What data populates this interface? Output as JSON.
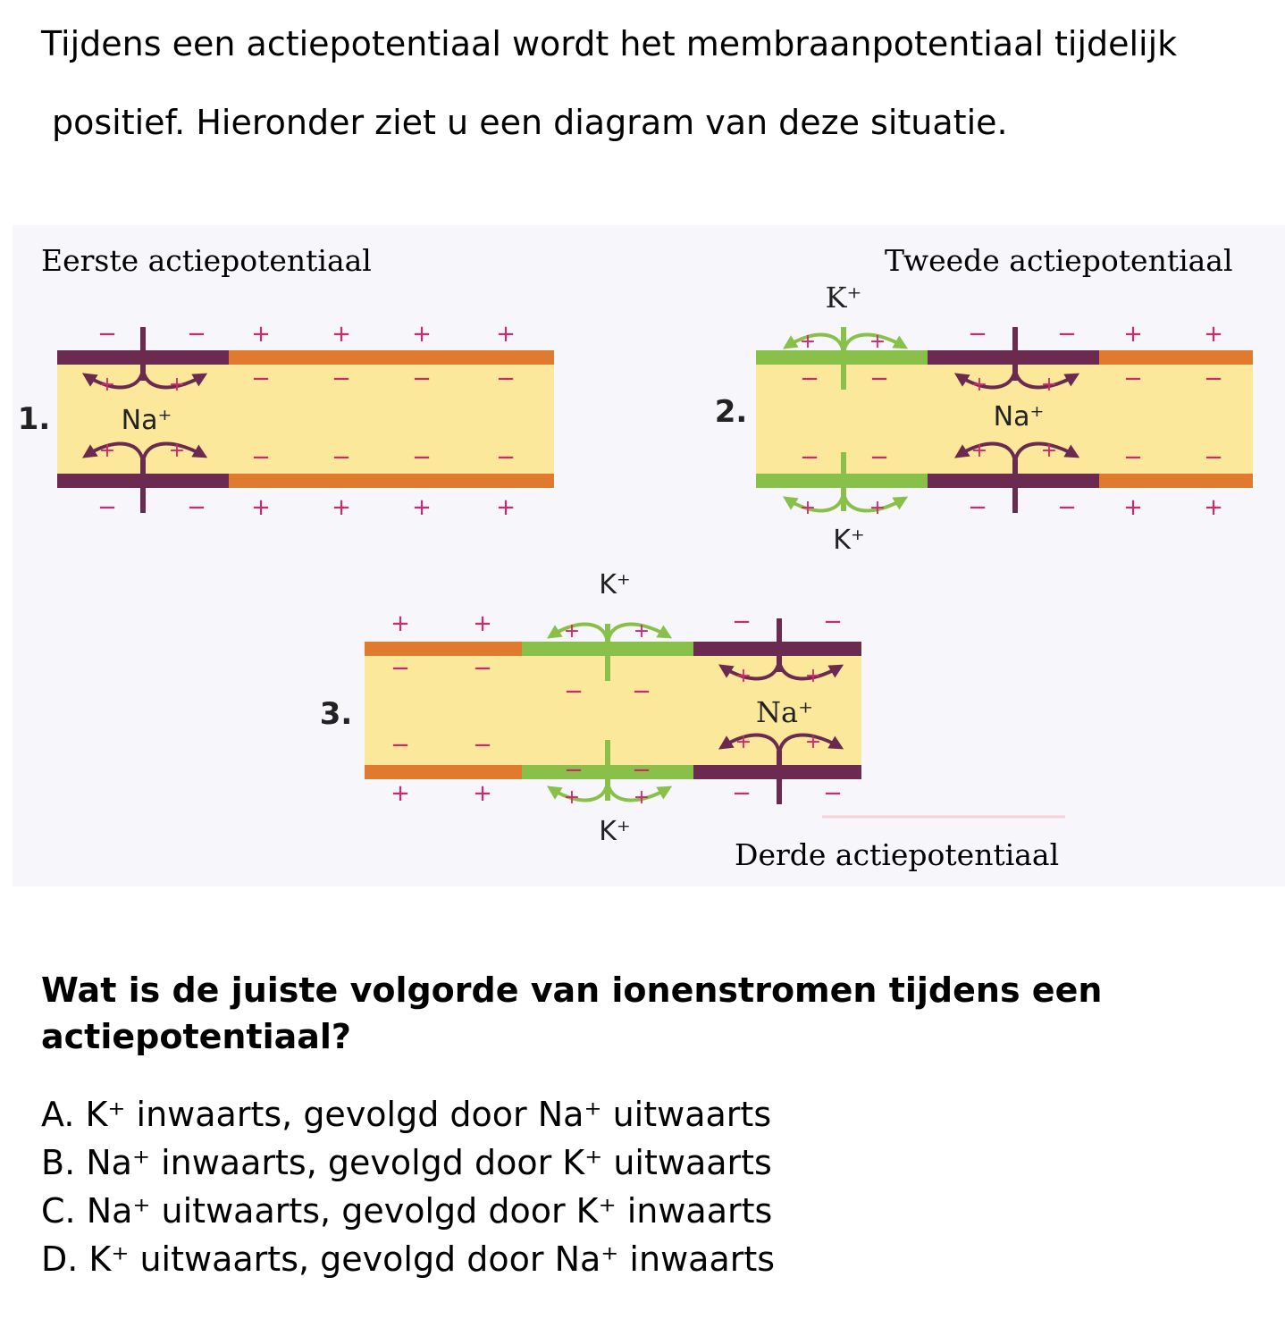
{
  "intro": {
    "line1": "Tijdens een actiepotentiaal wordt het membraanpotentiaal tijdelijk",
    "line2": "positief. Hieronder ziet u een diagram van deze situatie."
  },
  "diagram": {
    "labels": {
      "first": "Eerste actiepotentiaal",
      "second": "Tweede actiepotentiaal",
      "third": "Derde actiepotentiaal"
    },
    "panel_numbers": [
      "1.",
      "2.",
      "3."
    ],
    "ions": {
      "sodium": "Na⁺",
      "potassium": "K⁺"
    },
    "charge_signs": {
      "plus": "+",
      "minus": "−"
    },
    "colors": {
      "cytoplasm": "#fbe89a",
      "resting_membrane": "#e07a2e",
      "depolarized_membrane": "#6b2a4f",
      "repolarizing_membrane": "#88c04a",
      "plus_sign": "#d6246e",
      "minus_sign": "#d6246e",
      "na_arrow": "#6b2a4f",
      "k_arrow": "#88c04a",
      "panel_background": "#f7f7fb"
    }
  },
  "question": "Wat is de juiste volgorde van ionenstromen tijdens een actiepotentiaal?",
  "options": [
    "A. K⁺ inwaarts, gevolgd door Na⁺ uitwaarts",
    "B. Na⁺ inwaarts, gevolgd door K⁺ uitwaarts",
    "C. Na⁺ uitwaarts, gevolgd door K⁺ inwaarts",
    "D. K⁺ uitwaarts, gevolgd door Na⁺ inwaarts"
  ]
}
